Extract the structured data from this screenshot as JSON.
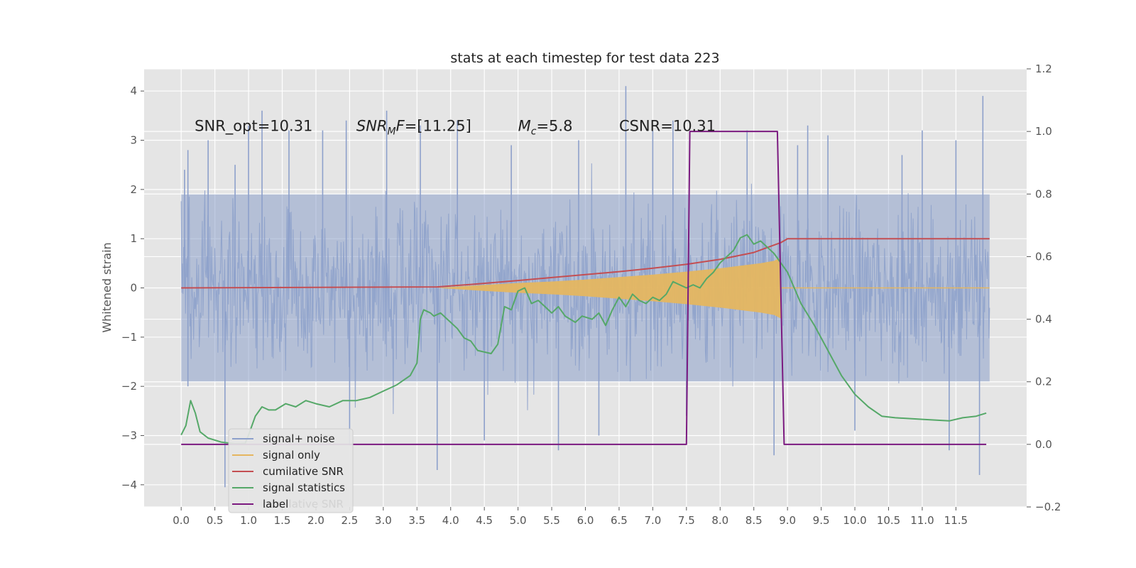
{
  "chart_data": {
    "type": "line",
    "title": "stats at each timestep for test data 223",
    "ylabel": "Whitened strain",
    "y2label": "",
    "xlim": [
      -0.55,
      12.55
    ],
    "ylim": [
      -4.45,
      4.45
    ],
    "y2lim": [
      -0.2,
      1.2
    ],
    "grid": true,
    "x_ticks": [
      0.0,
      0.5,
      1.0,
      1.5,
      2.0,
      2.5,
      3.0,
      3.5,
      4.0,
      4.5,
      5.0,
      5.5,
      6.0,
      6.5,
      7.0,
      7.5,
      8.0,
      8.5,
      9.0,
      9.5,
      10.0,
      10.5,
      11.0,
      11.5
    ],
    "x_tick_labels": [
      "0.0",
      "0.5",
      "1.0",
      "1.5",
      "2.0",
      "2.5",
      "3.0",
      "3.5",
      "4.0",
      "4.5",
      "5.0",
      "5.5",
      "6.0",
      "6.5",
      "7.0",
      "7.5",
      "8.0",
      "8.5",
      "9.0",
      "9.5",
      "10.0",
      "10.5",
      "11.0",
      "11.5"
    ],
    "y_ticks": [
      4,
      3,
      2,
      1,
      0,
      -1,
      -2,
      -3,
      -4
    ],
    "y_tick_labels": [
      "4",
      "3",
      "2",
      "1",
      "0",
      "−1",
      "−2",
      "−3",
      "−4"
    ],
    "y2_ticks": [
      1.2,
      1.0,
      0.8,
      0.6,
      0.4,
      0.2,
      0.0,
      -0.2
    ],
    "y2_tick_labels": [
      "1.2",
      "1.0",
      "0.8",
      "0.6",
      "0.4",
      "0.2",
      "0.0",
      "−0.2"
    ],
    "annotations": [
      {
        "text": "SNR_opt=10.31",
        "x": 0.2,
        "y": 3.3
      },
      {
        "text": "SNR_MF=[11.25]",
        "x": 2.6,
        "y": 3.3
      },
      {
        "text": "M_c=5.8",
        "x": 5.0,
        "y": 3.3
      },
      {
        "text": "CSNR=10.31",
        "x": 6.5,
        "y": 3.3
      }
    ],
    "legend_position": "lower-left",
    "legend_ghost_text": "cumilative SNR",
    "series": [
      {
        "name": "signal+ noise",
        "axis": "left",
        "color": "#8da0cb",
        "style": "noise",
        "x_range": [
          0.0,
          12.0
        ],
        "envelope_typical": [
          -2.0,
          2.0
        ],
        "spikes": [
          [
            0.05,
            2.4
          ],
          [
            0.1,
            2.8
          ],
          [
            0.4,
            3.0
          ],
          [
            0.8,
            2.5
          ],
          [
            1.0,
            3.3
          ],
          [
            1.2,
            3.6
          ],
          [
            1.6,
            3.2
          ],
          [
            2.1,
            3.2
          ],
          [
            2.45,
            3.4
          ],
          [
            3.05,
            3.6
          ],
          [
            3.55,
            3.3
          ],
          [
            4.1,
            3.4
          ],
          [
            4.9,
            2.9
          ],
          [
            5.9,
            3.0
          ],
          [
            6.6,
            4.1
          ],
          [
            7.0,
            3.2
          ],
          [
            7.3,
            3.4
          ],
          [
            8.4,
            3.2
          ],
          [
            9.15,
            2.9
          ],
          [
            9.3,
            3.3
          ],
          [
            9.6,
            3.1
          ],
          [
            10.7,
            2.7
          ],
          [
            11.0,
            3.2
          ],
          [
            11.5,
            3.0
          ],
          [
            11.9,
            3.9
          ],
          [
            0.65,
            -4.05
          ],
          [
            3.8,
            -3.7
          ],
          [
            5.6,
            -3.3
          ],
          [
            6.2,
            -3.0
          ],
          [
            8.8,
            -3.4
          ],
          [
            10.0,
            -2.9
          ],
          [
            11.4,
            -3.3
          ],
          [
            11.85,
            -3.8
          ],
          [
            0.1,
            -2.0
          ],
          [
            2.5,
            -3.2
          ],
          [
            4.5,
            -3.1
          ],
          [
            7.5,
            -2.6
          ]
        ]
      },
      {
        "name": "signal only",
        "axis": "left",
        "color": "#e5b660",
        "style": "chirp",
        "x_range": [
          3.8,
          12.0
        ],
        "envelope_points": [
          [
            3.8,
            0.0
          ],
          [
            4.5,
            0.06
          ],
          [
            5.0,
            0.1
          ],
          [
            5.5,
            0.13
          ],
          [
            6.0,
            0.17
          ],
          [
            6.5,
            0.22
          ],
          [
            7.0,
            0.27
          ],
          [
            7.5,
            0.33
          ],
          [
            8.0,
            0.4
          ],
          [
            8.3,
            0.45
          ],
          [
            8.6,
            0.5
          ],
          [
            8.8,
            0.55
          ],
          [
            8.9,
            0.62
          ]
        ],
        "merger_x": 8.9
      },
      {
        "name": "cumilative SNR",
        "axis": "left",
        "color": "#c44e52",
        "points": [
          [
            0.0,
            0.0
          ],
          [
            3.8,
            0.02
          ],
          [
            4.3,
            0.07
          ],
          [
            5.0,
            0.15
          ],
          [
            5.5,
            0.21
          ],
          [
            6.0,
            0.27
          ],
          [
            6.5,
            0.33
          ],
          [
            7.0,
            0.4
          ],
          [
            7.5,
            0.48
          ],
          [
            8.0,
            0.58
          ],
          [
            8.5,
            0.72
          ],
          [
            8.9,
            0.92
          ],
          [
            9.0,
            1.0
          ],
          [
            12.0,
            1.0
          ]
        ]
      },
      {
        "name": "signal statistics",
        "axis": "right",
        "color": "#55a868",
        "points": [
          [
            0.0,
            0.03
          ],
          [
            0.07,
            0.06
          ],
          [
            0.14,
            0.14
          ],
          [
            0.21,
            0.1
          ],
          [
            0.28,
            0.04
          ],
          [
            0.4,
            0.02
          ],
          [
            0.6,
            0.007
          ],
          [
            0.8,
            0.002
          ],
          [
            0.95,
            0.003
          ],
          [
            1.0,
            0.03
          ],
          [
            1.1,
            0.09
          ],
          [
            1.2,
            0.12
          ],
          [
            1.3,
            0.11
          ],
          [
            1.4,
            0.11
          ],
          [
            1.55,
            0.13
          ],
          [
            1.7,
            0.12
          ],
          [
            1.85,
            0.14
          ],
          [
            2.0,
            0.13
          ],
          [
            2.2,
            0.12
          ],
          [
            2.4,
            0.14
          ],
          [
            2.6,
            0.14
          ],
          [
            2.8,
            0.15
          ],
          [
            3.0,
            0.17
          ],
          [
            3.2,
            0.19
          ],
          [
            3.4,
            0.22
          ],
          [
            3.5,
            0.26
          ],
          [
            3.55,
            0.4
          ],
          [
            3.6,
            0.43
          ],
          [
            3.7,
            0.42
          ],
          [
            3.75,
            0.41
          ],
          [
            3.85,
            0.42
          ],
          [
            3.95,
            0.4
          ],
          [
            4.1,
            0.37
          ],
          [
            4.2,
            0.34
          ],
          [
            4.3,
            0.33
          ],
          [
            4.4,
            0.3
          ],
          [
            4.6,
            0.29
          ],
          [
            4.7,
            0.32
          ],
          [
            4.8,
            0.44
          ],
          [
            4.9,
            0.43
          ],
          [
            5.0,
            0.49
          ],
          [
            5.1,
            0.5
          ],
          [
            5.2,
            0.45
          ],
          [
            5.3,
            0.46
          ],
          [
            5.4,
            0.44
          ],
          [
            5.5,
            0.42
          ],
          [
            5.6,
            0.44
          ],
          [
            5.7,
            0.41
          ],
          [
            5.85,
            0.39
          ],
          [
            5.95,
            0.41
          ],
          [
            6.1,
            0.4
          ],
          [
            6.2,
            0.42
          ],
          [
            6.3,
            0.38
          ],
          [
            6.4,
            0.43
          ],
          [
            6.5,
            0.47
          ],
          [
            6.6,
            0.44
          ],
          [
            6.7,
            0.48
          ],
          [
            6.8,
            0.46
          ],
          [
            6.9,
            0.45
          ],
          [
            7.0,
            0.47
          ],
          [
            7.1,
            0.46
          ],
          [
            7.2,
            0.48
          ],
          [
            7.3,
            0.52
          ],
          [
            7.4,
            0.51
          ],
          [
            7.5,
            0.5
          ],
          [
            7.6,
            0.51
          ],
          [
            7.7,
            0.5
          ],
          [
            7.8,
            0.53
          ],
          [
            7.9,
            0.55
          ],
          [
            8.0,
            0.58
          ],
          [
            8.1,
            0.6
          ],
          [
            8.2,
            0.62
          ],
          [
            8.3,
            0.66
          ],
          [
            8.4,
            0.67
          ],
          [
            8.5,
            0.64
          ],
          [
            8.6,
            0.65
          ],
          [
            8.7,
            0.63
          ],
          [
            8.8,
            0.61
          ],
          [
            9.0,
            0.55
          ],
          [
            9.2,
            0.45
          ],
          [
            9.4,
            0.38
          ],
          [
            9.6,
            0.3
          ],
          [
            9.8,
            0.22
          ],
          [
            10.0,
            0.16
          ],
          [
            10.2,
            0.12
          ],
          [
            10.4,
            0.09
          ],
          [
            10.6,
            0.085
          ],
          [
            11.0,
            0.08
          ],
          [
            11.4,
            0.075
          ],
          [
            11.6,
            0.085
          ],
          [
            11.8,
            0.09
          ],
          [
            11.95,
            0.1
          ]
        ]
      },
      {
        "name": "label",
        "axis": "right",
        "color": "#7b1a80",
        "points": [
          [
            0.0,
            0.0
          ],
          [
            7.5,
            0.0
          ],
          [
            7.55,
            1.0
          ],
          [
            8.85,
            1.0
          ],
          [
            8.95,
            0.0
          ],
          [
            11.95,
            0.0
          ]
        ]
      }
    ]
  }
}
